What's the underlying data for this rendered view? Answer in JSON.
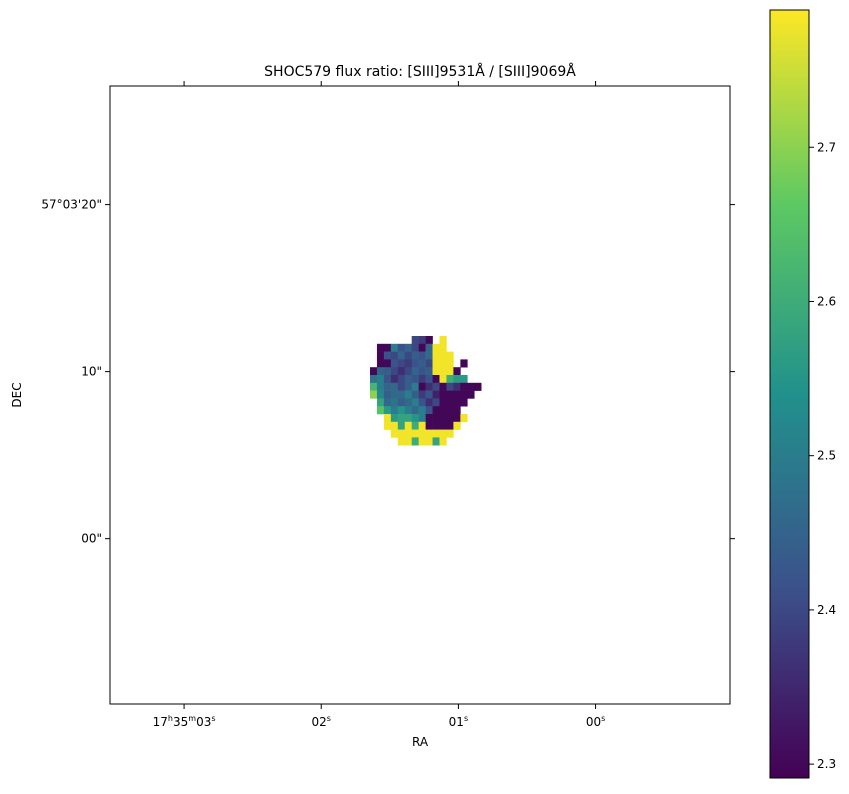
{
  "chart_data": {
    "type": "image",
    "title": "SHOC579 flux ratio: [SIII]9531Å / [SIII]9069Å",
    "x_label": "RA",
    "y_label": "DEC",
    "xlim": [
      3.54,
      -0.98
    ],
    "xticks": [
      {
        "value": 3,
        "label": "17h35m03s"
      },
      {
        "value": 2,
        "label": "02s"
      },
      {
        "value": 1,
        "label": "01s"
      },
      {
        "value": 0,
        "label": "00s"
      }
    ],
    "ylim": [
      -9.9,
      27.1
    ],
    "yticks": [
      {
        "value": 20,
        "label": "57°03'20\""
      },
      {
        "value": 10,
        "label": "10\""
      },
      {
        "value": 0,
        "label": "00\""
      }
    ],
    "colormap": "viridis",
    "clim": [
      2.291,
      2.789
    ],
    "cticks": [
      2.3,
      2.4,
      2.5,
      2.6,
      2.7
    ],
    "values": [
      [
        null,
        null,
        null,
        null,
        null,
        null,
        2.4,
        2.38,
        2.3,
        null,
        2.78,
        null,
        null,
        null,
        null,
        null,
        null
      ],
      [
        null,
        2.3,
        2.3,
        2.5,
        2.42,
        2.45,
        2.4,
        2.3,
        2.45,
        2.78,
        2.78,
        null,
        null,
        null,
        null,
        null,
        null
      ],
      [
        null,
        2.3,
        2.42,
        2.4,
        2.45,
        2.4,
        2.44,
        2.42,
        2.46,
        2.78,
        2.78,
        2.78,
        null,
        null,
        null,
        null,
        null
      ],
      [
        null,
        2.3,
        2.3,
        2.42,
        2.4,
        2.38,
        2.42,
        2.44,
        2.4,
        2.78,
        2.78,
        2.78,
        null,
        2.3,
        null,
        null,
        null
      ],
      [
        2.3,
        2.45,
        2.44,
        2.4,
        2.36,
        2.4,
        2.45,
        2.42,
        2.44,
        2.78,
        2.78,
        2.78,
        2.3,
        null,
        null,
        null,
        null
      ],
      [
        2.48,
        2.5,
        2.42,
        2.36,
        2.4,
        2.44,
        2.42,
        2.38,
        2.42,
        2.3,
        2.78,
        2.6,
        2.56,
        2.56,
        null,
        null,
        null
      ],
      [
        2.62,
        2.5,
        2.45,
        2.46,
        2.4,
        2.44,
        2.5,
        2.3,
        2.36,
        2.4,
        2.3,
        2.4,
        2.36,
        2.3,
        2.3,
        2.3,
        null
      ],
      [
        2.7,
        2.52,
        2.44,
        2.46,
        2.46,
        2.5,
        2.44,
        2.38,
        2.42,
        2.34,
        2.3,
        2.3,
        2.3,
        2.3,
        2.3,
        null,
        null
      ],
      [
        null,
        2.58,
        2.46,
        2.48,
        2.44,
        2.46,
        2.5,
        2.42,
        2.36,
        2.4,
        2.3,
        2.3,
        2.3,
        2.3,
        null,
        null,
        null
      ],
      [
        null,
        2.65,
        2.56,
        2.5,
        2.55,
        2.5,
        2.46,
        2.5,
        2.42,
        2.3,
        2.3,
        2.3,
        2.3,
        null,
        null,
        null,
        null
      ],
      [
        null,
        null,
        2.78,
        2.56,
        2.58,
        2.58,
        2.55,
        2.5,
        2.3,
        2.3,
        2.3,
        2.3,
        2.3,
        2.78,
        null,
        null,
        null
      ],
      [
        null,
        null,
        2.78,
        2.78,
        2.58,
        2.78,
        2.6,
        2.78,
        2.3,
        2.3,
        2.3,
        2.3,
        2.78,
        null,
        null,
        null,
        null
      ],
      [
        null,
        null,
        null,
        2.78,
        2.78,
        2.78,
        2.78,
        2.78,
        2.78,
        2.78,
        2.78,
        2.78,
        null,
        null,
        null,
        null,
        null
      ],
      [
        null,
        null,
        null,
        null,
        2.78,
        2.78,
        2.6,
        2.78,
        2.78,
        2.58,
        2.78,
        null,
        null,
        null,
        null,
        null,
        null
      ]
    ]
  }
}
